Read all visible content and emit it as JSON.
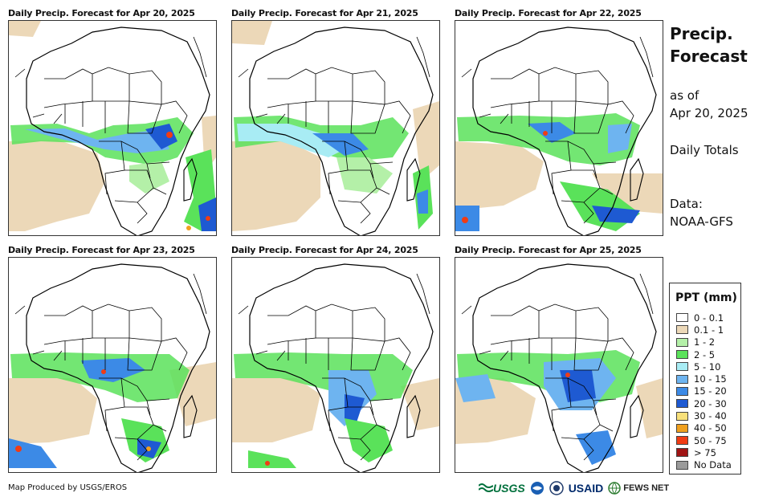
{
  "panels": [
    {
      "title": "Daily Precip. Forecast for Apr 20, 2025"
    },
    {
      "title": "Daily Precip. Forecast for Apr 21, 2025"
    },
    {
      "title": "Daily Precip. Forecast for Apr 22, 2025"
    },
    {
      "title": "Daily Precip. Forecast for Apr 23, 2025"
    },
    {
      "title": "Daily Precip. Forecast for Apr 24, 2025"
    },
    {
      "title": "Daily Precip. Forecast for Apr 25, 2025"
    }
  ],
  "sidebar": {
    "title_line1": "Precip.",
    "title_line2": "Forecast",
    "as_of_label": "as of",
    "as_of_date": "Apr 20, 2025",
    "totals": "Daily Totals",
    "data_label": "Data:",
    "data_source": "NOAA-GFS"
  },
  "legend": {
    "title": "PPT (mm)",
    "items": [
      {
        "label": "0 - 0.1",
        "color": "#ffffff"
      },
      {
        "label": "0.1 - 1",
        "color": "#ecd8b8"
      },
      {
        "label": "1 - 2",
        "color": "#b4f0a8"
      },
      {
        "label": "2 - 5",
        "color": "#5ae25a"
      },
      {
        "label": "5 - 10",
        "color": "#a8ecf4"
      },
      {
        "label": "10 - 15",
        "color": "#6eb4f0"
      },
      {
        "label": "15 - 20",
        "color": "#3c8ae6"
      },
      {
        "label": "20 - 30",
        "color": "#1e5ad2"
      },
      {
        "label": "30 - 40",
        "color": "#f8e07a"
      },
      {
        "label": "40 - 50",
        "color": "#f0a01e"
      },
      {
        "label": "50 - 75",
        "color": "#f03c14"
      },
      {
        "label": "> 75",
        "color": "#a01414"
      },
      {
        "label": "No Data",
        "color": "#9a9a9a"
      }
    ]
  },
  "footer": {
    "credit": "Map Produced by USGS/EROS",
    "logos": {
      "usgs": "USGS",
      "usaid": "USAID",
      "fews": "FEWS NET"
    }
  }
}
